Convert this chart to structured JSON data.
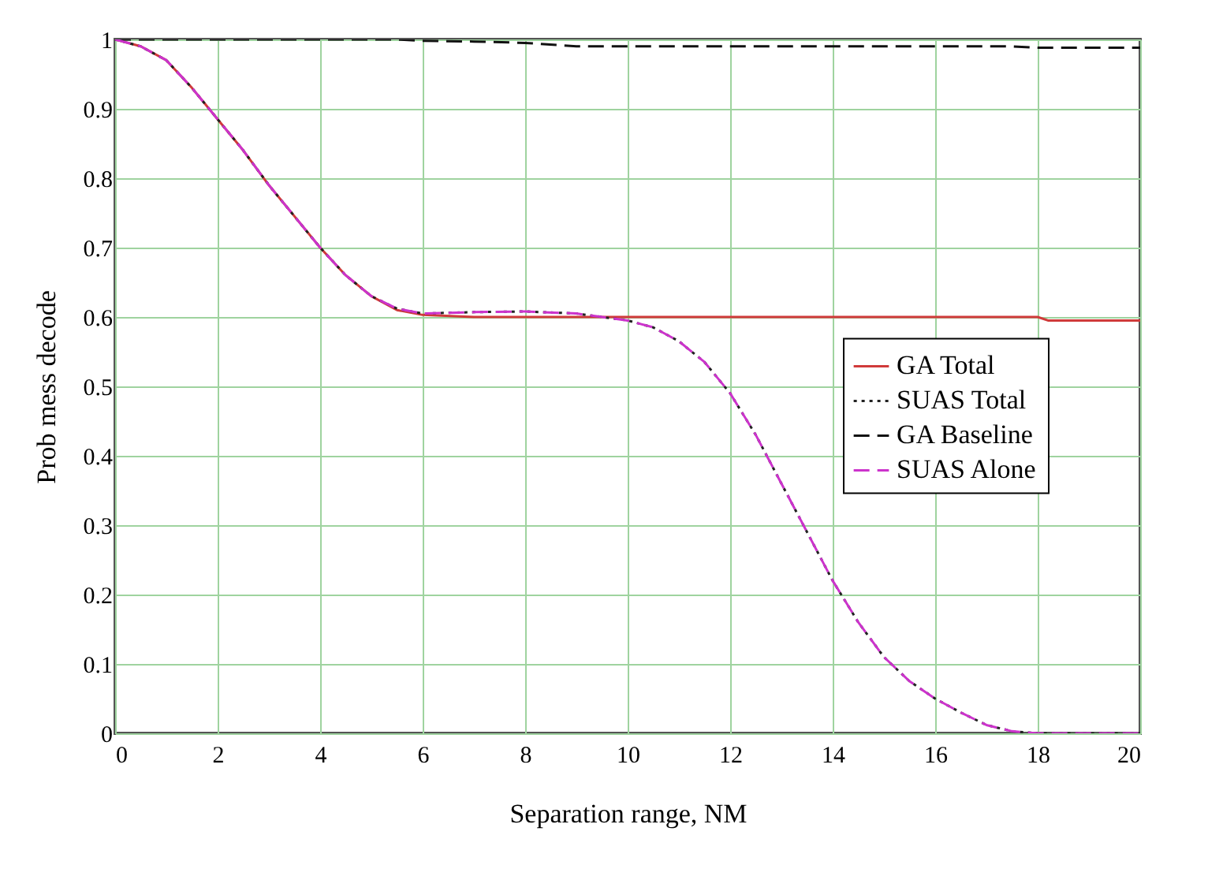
{
  "chart_data": {
    "type": "line",
    "xlabel": "Separation range, NM",
    "ylabel": "Prob mess decode",
    "xlim": [
      0,
      20
    ],
    "ylim": [
      0,
      1
    ],
    "xticks": [
      0,
      2,
      4,
      6,
      8,
      10,
      12,
      14,
      16,
      18,
      20
    ],
    "yticks": [
      0,
      0.1,
      0.2,
      0.3,
      0.4,
      0.5,
      0.6,
      0.7,
      0.8,
      0.9,
      1
    ],
    "grid": true,
    "legend": "bottom right",
    "x": [
      0,
      0.5,
      1,
      1.5,
      2,
      2.5,
      3,
      3.5,
      4,
      4.5,
      5,
      5.5,
      6,
      7,
      8,
      9,
      10,
      10.5,
      11,
      11.5,
      12,
      12.5,
      13,
      13.5,
      14,
      14.5,
      15,
      15.5,
      16,
      16.5,
      17,
      17.5,
      18,
      18.2,
      20
    ],
    "series": [
      {
        "name": "GA Total",
        "color": "#d03a3a",
        "line_style": "solid",
        "values": [
          1,
          0.99,
          0.97,
          0.93,
          0.885,
          0.84,
          0.79,
          0.745,
          0.7,
          0.66,
          0.63,
          0.61,
          0.603,
          0.6,
          0.6,
          0.6,
          0.6,
          0.6,
          0.6,
          0.6,
          0.6,
          0.6,
          0.6,
          0.6,
          0.6,
          0.6,
          0.6,
          0.6,
          0.6,
          0.6,
          0.6,
          0.6,
          0.6,
          0.595,
          0.595
        ]
      },
      {
        "name": "SUAS Total",
        "color": "#222222",
        "line_style": "dotted",
        "values": [
          1,
          0.99,
          0.97,
          0.93,
          0.885,
          0.84,
          0.79,
          0.745,
          0.7,
          0.66,
          0.63,
          0.612,
          0.605,
          0.607,
          0.608,
          0.605,
          0.595,
          0.585,
          0.565,
          0.535,
          0.49,
          0.43,
          0.36,
          0.29,
          0.22,
          0.16,
          0.11,
          0.075,
          0.05,
          0.03,
          0.012,
          0.003,
          0,
          0,
          0
        ]
      },
      {
        "name": "GA Baseline",
        "color": "#111111",
        "line_style": "dashed",
        "values": [
          1,
          1,
          1,
          1,
          1,
          1,
          1,
          1,
          1,
          1,
          1,
          1,
          0.998,
          0.997,
          0.995,
          0.99,
          0.99,
          0.99,
          0.99,
          0.99,
          0.99,
          0.99,
          0.99,
          0.99,
          0.99,
          0.99,
          0.99,
          0.99,
          0.99,
          0.99,
          0.99,
          0.99,
          0.988,
          0.988,
          0.988
        ]
      },
      {
        "name": "SUAS Alone",
        "color": "#cc33cc",
        "line_style": "dashed",
        "values": [
          1,
          0.99,
          0.97,
          0.93,
          0.885,
          0.84,
          0.79,
          0.745,
          0.7,
          0.66,
          0.63,
          0.612,
          0.605,
          0.607,
          0.608,
          0.605,
          0.595,
          0.585,
          0.565,
          0.535,
          0.49,
          0.43,
          0.36,
          0.29,
          0.22,
          0.16,
          0.11,
          0.075,
          0.05,
          0.03,
          0.012,
          0.003,
          0,
          0,
          0
        ]
      }
    ]
  }
}
